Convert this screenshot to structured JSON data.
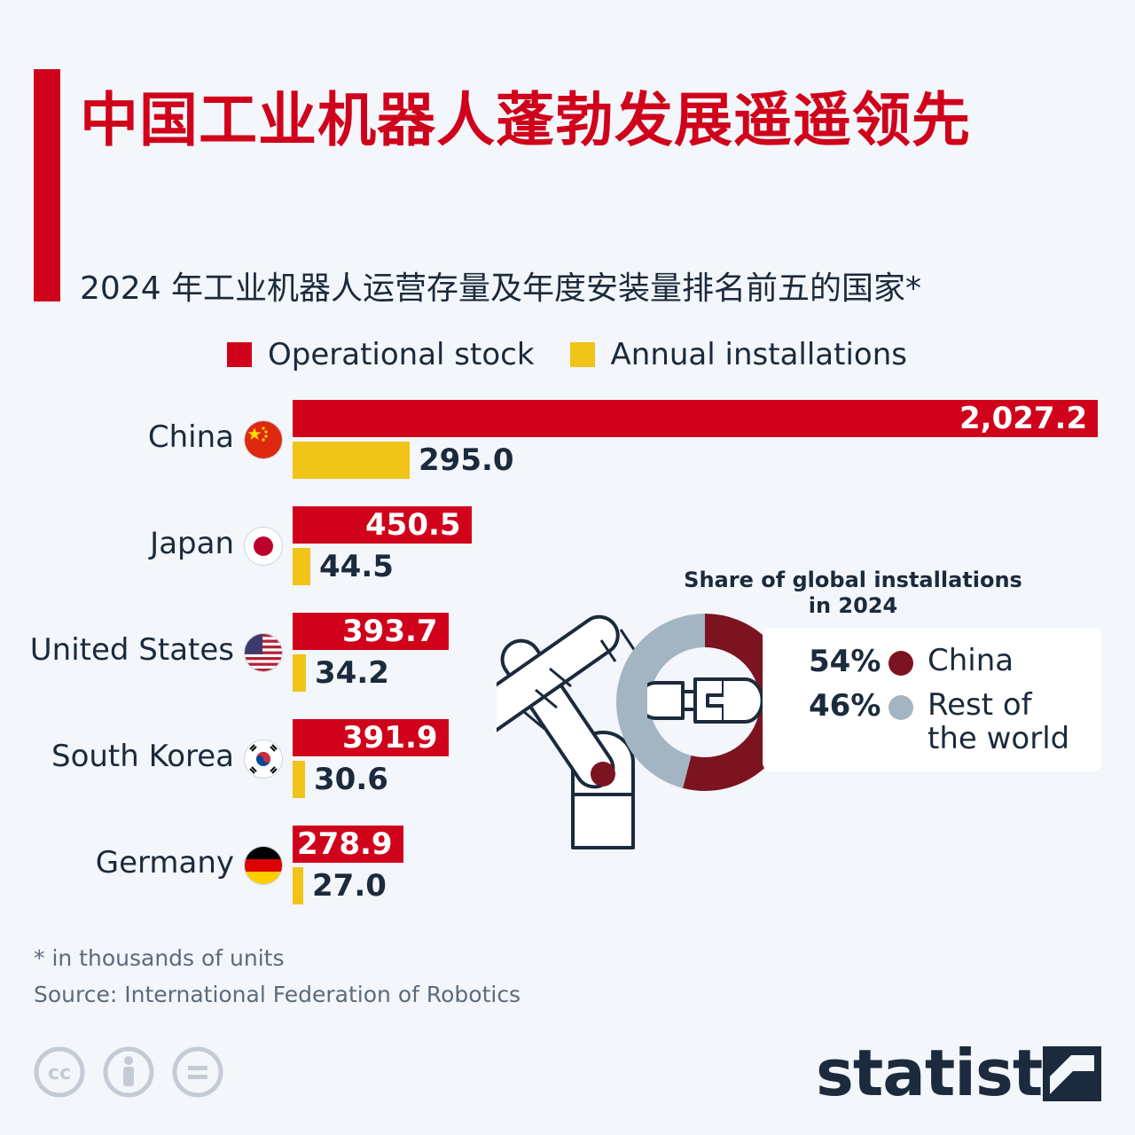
{
  "title": "中国工业机器人蓬勃发展遥遥领先",
  "subtitle": "2024 年工业机器人运营存量及年度安装量排名前五的国家*",
  "legend": [
    {
      "label": "Operational stock",
      "color": "#d0021b"
    },
    {
      "label": "Annual installations",
      "color": "#f0c419"
    }
  ],
  "chart_data": [
    {
      "type": "bar",
      "orientation": "horizontal",
      "categories": [
        "China",
        "Japan",
        "United States",
        "South Korea",
        "Germany"
      ],
      "series": [
        {
          "name": "Operational stock",
          "values": [
            2027.2,
            450.5,
            393.7,
            391.9,
            278.9
          ],
          "labels": [
            "2,027.2",
            "450.5",
            "393.7",
            "391.9",
            "278.9"
          ]
        },
        {
          "name": "Annual installations",
          "values": [
            295.0,
            44.5,
            34.2,
            30.6,
            27.0
          ],
          "labels": [
            "295.0",
            "44.5",
            "34.2",
            "30.6",
            "27.0"
          ]
        }
      ],
      "unit": "thousands of units",
      "xlim": [
        0,
        2027.2
      ]
    },
    {
      "type": "pie",
      "title": "Share of global installations in 2024",
      "slices": [
        {
          "name": "China",
          "value": 54,
          "label": "54%",
          "color": "#7b1420"
        },
        {
          "name": "Rest of the world",
          "value": 46,
          "label": "46%",
          "color": "#a3b5c2"
        }
      ]
    }
  ],
  "donut": {
    "title": "Share of global installations in 2024",
    "rows": [
      {
        "pct": "54%",
        "name": "China",
        "color": "#7b1420"
      },
      {
        "pct": "46%",
        "name": "Rest of the world",
        "color": "#a3b5c2"
      }
    ]
  },
  "footnote": "* in thousands of units",
  "source": "Source: International Federation of Robotics",
  "brand": "statista",
  "license_icons": [
    "cc-icon",
    "by-icon",
    "nd-icon"
  ]
}
